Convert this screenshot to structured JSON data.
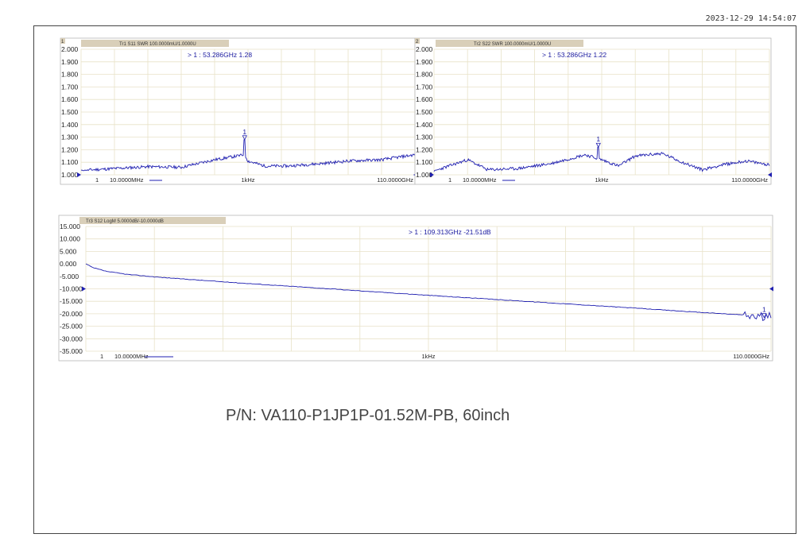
{
  "timestamp": "2023-12-29 14:54:07",
  "part_number": "P/N: VA110-P1JP1P-01.52M-PB, 60inch",
  "colors": {
    "trace": "#1f1fb0",
    "grid": "#e8e2c8",
    "title_bar": "#d9cfb9",
    "marker_tri": "#1f1fb0"
  },
  "chart_data": [
    {
      "type": "line",
      "channel_number": "1",
      "trace_title": "Tr1 S11 SWR 100.0000mU/1.0000U",
      "marker_readout": "> 1  : 53.286GHz    1.28",
      "marker_label": "1",
      "marker": {
        "x": 0.49,
        "y": 1.28
      },
      "y_ticks": [
        "2.000",
        "1.900",
        "1.800",
        "1.700",
        "1.600",
        "1.500",
        "1.400",
        "1.300",
        "1.200",
        "1.100",
        "1.000"
      ],
      "ylim": [
        1.0,
        2.0
      ],
      "x_labels": {
        "index": "1",
        "start": "10.0000MHz",
        "mid": "1kHz",
        "stop": "110.0000GHz"
      },
      "ref_level": 1.0,
      "baseline": [
        [
          0,
          1.035
        ],
        [
          0.1,
          1.05
        ],
        [
          0.2,
          1.065
        ],
        [
          0.3,
          1.06
        ],
        [
          0.4,
          1.12
        ],
        [
          0.49,
          1.16
        ],
        [
          0.5,
          1.11
        ],
        [
          0.55,
          1.07
        ],
        [
          0.62,
          1.07
        ],
        [
          0.72,
          1.09
        ],
        [
          0.8,
          1.11
        ],
        [
          0.9,
          1.12
        ],
        [
          1.0,
          1.16
        ]
      ],
      "noise": 0.04,
      "seed": 11
    },
    {
      "type": "line",
      "channel_number": "2",
      "trace_title": "Tr2 S22 SWR 100.0000mU/1.0000U",
      "marker_readout": "> 1  : 53.286GHz    1.22",
      "marker_label": "1",
      "marker": {
        "x": 0.49,
        "y": 1.22
      },
      "y_ticks": [
        "2.000",
        "1.900",
        "1.800",
        "1.700",
        "1.600",
        "1.500",
        "1.400",
        "1.300",
        "1.200",
        "1.100",
        "1.000"
      ],
      "ylim": [
        1.0,
        2.0
      ],
      "x_labels": {
        "index": "1",
        "start": "10.0000MHz",
        "mid": "1kHz",
        "stop": "110.0000GHz"
      },
      "ref_level": 1.0,
      "baseline": [
        [
          0,
          1.03
        ],
        [
          0.1,
          1.12
        ],
        [
          0.16,
          1.04
        ],
        [
          0.25,
          1.05
        ],
        [
          0.35,
          1.09
        ],
        [
          0.45,
          1.16
        ],
        [
          0.5,
          1.12
        ],
        [
          0.55,
          1.07
        ],
        [
          0.6,
          1.15
        ],
        [
          0.68,
          1.17
        ],
        [
          0.74,
          1.1
        ],
        [
          0.8,
          1.04
        ],
        [
          0.86,
          1.08
        ],
        [
          0.93,
          1.11
        ],
        [
          1.0,
          1.08
        ]
      ],
      "noise": 0.04,
      "seed": 23
    },
    {
      "type": "line",
      "channel_number": "",
      "trace_title": "Tr3 S12 LogM 5.0000dB/-10.0000dB",
      "marker_readout": "> 1  : 109.313GHz   -21.51dB",
      "marker_label": "1",
      "marker": {
        "x": 0.99,
        "y": -21.51
      },
      "y_ticks": [
        "15.000",
        "10.000",
        "5.000",
        "0.000",
        "-5.000",
        "-10.000",
        "-15.000",
        "-20.000",
        "-25.000",
        "-30.000",
        "-35.000"
      ],
      "ylim": [
        -35.0,
        15.0
      ],
      "x_labels": {
        "index": "1",
        "start": "10.0000MHz",
        "mid": "1kHz",
        "stop": "110.0000GHz"
      },
      "ref_level": -10.0,
      "baseline": [
        [
          0,
          0.0
        ],
        [
          0.01,
          -1.5
        ],
        [
          0.03,
          -3.0
        ],
        [
          0.06,
          -4.2
        ],
        [
          0.1,
          -5.2
        ],
        [
          0.2,
          -7.2
        ],
        [
          0.3,
          -9.0
        ],
        [
          0.4,
          -10.8
        ],
        [
          0.5,
          -12.6
        ],
        [
          0.6,
          -14.3
        ],
        [
          0.7,
          -16.0
        ],
        [
          0.8,
          -17.7
        ],
        [
          0.9,
          -19.5
        ],
        [
          0.97,
          -20.6
        ],
        [
          1.0,
          -21.6
        ]
      ],
      "noise": 0.05,
      "seed": 37
    }
  ]
}
